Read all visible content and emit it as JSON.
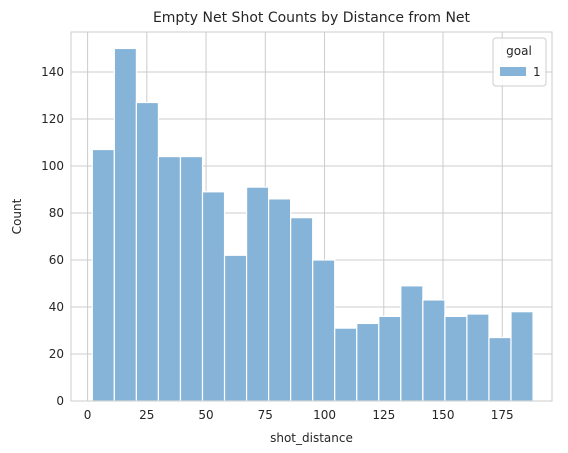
{
  "chart_data": {
    "type": "bar",
    "title": "Empty Net Shot Counts by Distance from Net",
    "xlabel": "shot_distance",
    "ylabel": "Count",
    "xlim": [
      -7,
      196
    ],
    "ylim": [
      0,
      157
    ],
    "xticks": [
      0,
      25,
      50,
      75,
      100,
      125,
      150,
      175
    ],
    "yticks": [
      0,
      20,
      40,
      60,
      80,
      100,
      120,
      140
    ],
    "grid": true,
    "legend": {
      "title": "goal",
      "entries": [
        "1"
      ],
      "placement": "top-right"
    },
    "bin_edges": [
      2,
      11.3,
      20.6,
      29.9,
      39.2,
      48.5,
      57.8,
      67.1,
      76.4,
      85.7,
      95,
      104.3,
      113.6,
      122.9,
      132.2,
      141.5,
      150.8,
      160.1,
      169.4,
      178.7,
      188
    ],
    "values": [
      107,
      150,
      127,
      104,
      104,
      89,
      62,
      91,
      86,
      78,
      60,
      31,
      33,
      36,
      49,
      43,
      36,
      37,
      27,
      38
    ],
    "colors": {
      "bar": "#86b4d8",
      "bar_edge": "#ffffff",
      "grid": "#cccccc",
      "axis": "#262626"
    }
  }
}
